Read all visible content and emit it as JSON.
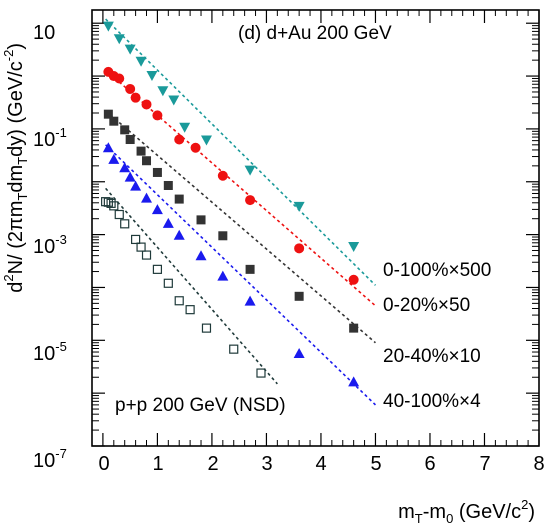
{
  "chart_data": {
    "type": "scatter",
    "panel_label": "(d) d+Au 200 GeV",
    "annotation": "p+p 200 GeV (NSD)",
    "xlabel": {
      "main": "m",
      "sub1": "T",
      "mid": "-m",
      "sub2": "0",
      "unit_open": " (GeV/c",
      "unit_sup": "2",
      "unit_close": ")"
    },
    "ylabel": {
      "p1": "d",
      "p1_sup": "2",
      "p2": "N/ (2πm",
      "p2_sub": "T",
      "p3": "dm",
      "p3_sub": "T",
      "p4": "dy) (GeV/c",
      "p4_sup": "-2",
      "p5": ")"
    },
    "xlim": [
      -0.2,
      8
    ],
    "ylim_log10": [
      -7,
      1.25
    ],
    "log_y": true,
    "x_ticks": [
      "0",
      "1",
      "2",
      "3",
      "4",
      "5",
      "6",
      "7",
      "8"
    ],
    "y_ticks": [
      {
        "base": "10",
        "exp": ""
      },
      {
        "base": "10",
        "exp": "-1"
      },
      {
        "base": "10",
        "exp": "-3"
      },
      {
        "base": "10",
        "exp": "-5"
      },
      {
        "base": "10",
        "exp": "-7"
      }
    ],
    "series": [
      {
        "name": "0-100%×500",
        "color": "#1a9a9a",
        "marker": "triangle-down-filled",
        "x": [
          0.1,
          0.3,
          0.5,
          0.7,
          0.9,
          1.1,
          1.3,
          1.5,
          1.9,
          2.7,
          3.6,
          4.6
        ],
        "y": [
          9.0,
          5.2,
          3.3,
          1.95,
          1.05,
          0.54,
          0.36,
          0.11,
          0.063,
          0.017,
          0.0035,
          0.00061
        ]
      },
      {
        "name": "0-20%×50",
        "color": "#ee1111",
        "marker": "circle-filled",
        "x": [
          0.1,
          0.2,
          0.3,
          0.5,
          0.6,
          0.8,
          1.0,
          1.4,
          1.7,
          2.2,
          2.7,
          3.6,
          4.6
        ],
        "y": [
          1.2,
          1.0,
          0.9,
          0.57,
          0.39,
          0.29,
          0.18,
          0.063,
          0.044,
          0.013,
          0.0045,
          0.00055,
          0.00014
        ]
      },
      {
        "name": "20-40%×10",
        "color": "#333333",
        "marker": "square-filled",
        "x": [
          0.1,
          0.2,
          0.4,
          0.5,
          0.7,
          0.8,
          1.0,
          1.2,
          1.4,
          1.8,
          2.2,
          2.7,
          3.6,
          4.6
        ],
        "y": [
          0.19,
          0.14,
          0.096,
          0.063,
          0.038,
          0.025,
          0.015,
          0.0085,
          0.0047,
          0.0019,
          0.00095,
          0.00022,
          6.8e-05,
          1.7e-05
        ]
      },
      {
        "name": "40-100%×4",
        "color": "#1a1aee",
        "marker": "triangle-up-filled",
        "x": [
          0.1,
          0.2,
          0.4,
          0.5,
          0.6,
          0.8,
          1.0,
          1.2,
          1.4,
          1.8,
          2.2,
          2.7,
          3.6,
          4.6
        ],
        "y": [
          0.043,
          0.026,
          0.018,
          0.012,
          0.0081,
          0.0048,
          0.0029,
          0.0016,
          0.00095,
          0.00039,
          0.00016,
          5.4e-05,
          5.5e-06,
          1.6e-06
        ]
      },
      {
        "name": "p+p 200 GeV (NSD)",
        "color": "#1f3a3a",
        "marker": "square-open",
        "x": [
          0.05,
          0.1,
          0.15,
          0.2,
          0.3,
          0.4,
          0.6,
          0.7,
          0.8,
          1.0,
          1.2,
          1.4,
          1.6,
          1.9,
          2.4,
          2.9
        ],
        "y": [
          0.0042,
          0.0041,
          0.0039,
          0.0035,
          0.0024,
          0.0016,
          0.00081,
          0.00058,
          0.00041,
          0.00022,
          0.00012,
          5.6e-05,
          3.8e-05,
          1.7e-05,
          6.8e-06,
          2.4e-06
        ]
      }
    ],
    "fit_lines": [
      {
        "color": "#1a9a9a",
        "x": [
          0.05,
          5.0
        ],
        "y": [
          12.0,
          0.00011
        ]
      },
      {
        "color": "#ee1111",
        "x": [
          0.05,
          5.0
        ],
        "y": [
          1.3,
          4.5e-05
        ]
      },
      {
        "color": "#333333",
        "x": [
          0.05,
          5.0
        ],
        "y": [
          0.22,
          9e-06
        ]
      },
      {
        "color": "#1a1aee",
        "x": [
          0.05,
          5.0
        ],
        "y": [
          0.05,
          6e-07
        ]
      },
      {
        "color": "#1f3a3a",
        "x": [
          0.05,
          3.2
        ],
        "y": [
          0.0075,
          1.5e-06
        ]
      }
    ]
  }
}
